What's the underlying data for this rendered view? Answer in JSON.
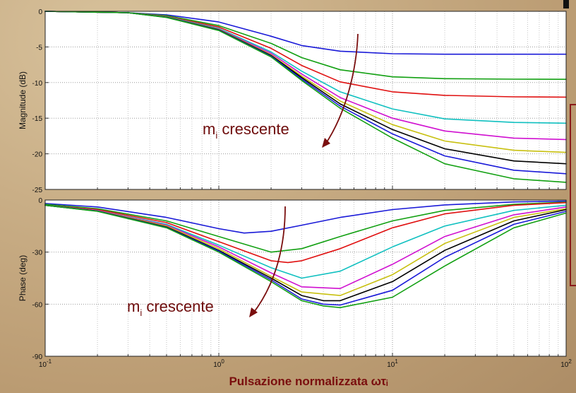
{
  "chart_data": [
    {
      "type": "line",
      "ylabel": "Magnitude (dB)",
      "x_scale": "log",
      "xlim": [
        0.1,
        100
      ],
      "ylim": [
        -25,
        0
      ],
      "yticks": [
        0,
        -5,
        -10,
        -15,
        -20,
        -25
      ],
      "grid": true,
      "annotation": {
        "main": "m",
        "sub": "i",
        "rest": " crescente"
      },
      "series": [
        {
          "color": "#1a1ad8",
          "x": [
            0.1,
            0.3,
            0.5,
            1,
            2,
            3,
            5,
            10,
            20,
            50,
            100
          ],
          "y": [
            0,
            -0.2,
            -0.5,
            -1.5,
            -3.5,
            -4.8,
            -5.6,
            -5.95,
            -6.02,
            -6.02,
            -6.02
          ]
        },
        {
          "color": "#12a012",
          "x": [
            0.1,
            0.3,
            0.5,
            1,
            2,
            3,
            5,
            10,
            20,
            50,
            100
          ],
          "y": [
            0,
            -0.2,
            -0.6,
            -2,
            -4.5,
            -6.5,
            -8.2,
            -9.2,
            -9.45,
            -9.52,
            -9.54
          ]
        },
        {
          "color": "#e01010",
          "x": [
            0.1,
            0.3,
            0.5,
            1,
            2,
            3,
            5,
            10,
            20,
            50,
            100
          ],
          "y": [
            0,
            -0.2,
            -0.7,
            -2.2,
            -5.2,
            -7.6,
            -9.9,
            -11.3,
            -11.8,
            -12.0,
            -12.04
          ]
        },
        {
          "color": "#10c0c0",
          "x": [
            0.1,
            0.3,
            0.5,
            1,
            2,
            3,
            5,
            10,
            20,
            50,
            100
          ],
          "y": [
            0,
            -0.2,
            -0.75,
            -2.4,
            -5.7,
            -8.4,
            -11.3,
            -13.7,
            -15.1,
            -15.6,
            -15.7
          ]
        },
        {
          "color": "#d010d0",
          "x": [
            0.1,
            0.3,
            0.5,
            1,
            2,
            3,
            5,
            10,
            20,
            50,
            100
          ],
          "y": [
            0,
            -0.2,
            -0.8,
            -2.5,
            -5.9,
            -8.8,
            -12.1,
            -15.0,
            -16.8,
            -17.8,
            -18.0
          ]
        },
        {
          "color": "#c8c010",
          "x": [
            0.1,
            0.3,
            0.5,
            1,
            2,
            3,
            5,
            10,
            20,
            50,
            100
          ],
          "y": [
            0,
            -0.2,
            -0.8,
            -2.55,
            -6.1,
            -9.1,
            -12.6,
            -15.9,
            -18.2,
            -19.5,
            -19.8
          ]
        },
        {
          "color": "#000000",
          "x": [
            0.1,
            0.3,
            0.5,
            1,
            2,
            3,
            5,
            10,
            20,
            50,
            100
          ],
          "y": [
            0,
            -0.2,
            -0.82,
            -2.6,
            -6.2,
            -9.3,
            -13.0,
            -16.6,
            -19.3,
            -21.0,
            -21.4
          ]
        },
        {
          "color": "#1a1ad8",
          "x": [
            0.1,
            0.3,
            0.5,
            1,
            2,
            3,
            5,
            10,
            20,
            50,
            100
          ],
          "y": [
            0,
            -0.2,
            -0.84,
            -2.65,
            -6.3,
            -9.5,
            -13.3,
            -17.2,
            -20.3,
            -22.3,
            -22.8
          ]
        },
        {
          "color": "#12a012",
          "x": [
            0.1,
            0.3,
            0.5,
            1,
            2,
            3,
            5,
            10,
            20,
            50,
            100
          ],
          "y": [
            0,
            -0.2,
            -0.86,
            -2.7,
            -6.4,
            -9.7,
            -13.6,
            -17.8,
            -21.4,
            -23.5,
            -24.0
          ]
        }
      ]
    },
    {
      "type": "line",
      "ylabel": "Phase (deg)",
      "xlabel": "Pulsazione normalizzata ωτᵢ",
      "x_scale": "log",
      "xlim": [
        0.1,
        100
      ],
      "ylim": [
        -90,
        0
      ],
      "yticks": [
        0,
        -30,
        -60,
        -90
      ],
      "xticks": [
        {
          "base": "10",
          "exp": "-1"
        },
        {
          "base": "10",
          "exp": "0"
        },
        {
          "base": "10",
          "exp": "1"
        },
        {
          "base": "10",
          "exp": "2"
        }
      ],
      "grid": true,
      "annotation": {
        "main": "m",
        "sub": "i",
        "rest": " crescente"
      },
      "series": [
        {
          "color": "#1a1ad8",
          "x": [
            0.1,
            0.2,
            0.5,
            1,
            1.4,
            2,
            3,
            5,
            10,
            20,
            50,
            100
          ],
          "y": [
            -2,
            -4,
            -10,
            -16.5,
            -19,
            -18,
            -14.5,
            -10,
            -5.5,
            -2.8,
            -1.1,
            -0.6
          ]
        },
        {
          "color": "#12a012",
          "x": [
            0.1,
            0.2,
            0.5,
            1,
            2,
            3,
            5,
            10,
            20,
            50,
            100
          ],
          "y": [
            -2.5,
            -5,
            -12,
            -21,
            -30,
            -28,
            -21,
            -12,
            -6,
            -2.5,
            -1.2
          ]
        },
        {
          "color": "#e01010",
          "x": [
            0.1,
            0.2,
            0.5,
            1,
            2,
            2.5,
            3,
            5,
            10,
            20,
            50,
            100
          ],
          "y": [
            -3,
            -5.5,
            -13,
            -24,
            -35,
            -36,
            -35,
            -28,
            -16,
            -8,
            -3,
            -1.5
          ]
        },
        {
          "color": "#10c0c0",
          "x": [
            0.1,
            0.2,
            0.5,
            1,
            2,
            3,
            5,
            10,
            20,
            50,
            100
          ],
          "y": [
            -3,
            -6,
            -14,
            -26,
            -39,
            -45,
            -41,
            -27,
            -15,
            -6,
            -3
          ]
        },
        {
          "color": "#d010d0",
          "x": [
            0.1,
            0.2,
            0.5,
            1,
            2,
            3,
            5,
            10,
            20,
            50,
            100
          ],
          "y": [
            -3,
            -6,
            -14.5,
            -27,
            -42,
            -50,
            -51,
            -37,
            -21,
            -8.5,
            -4
          ]
        },
        {
          "color": "#c8c010",
          "x": [
            0.1,
            0.2,
            0.5,
            1,
            2,
            3,
            5,
            10,
            20,
            50,
            100
          ],
          "y": [
            -3,
            -6.2,
            -15,
            -28,
            -44,
            -53,
            -55,
            -43,
            -25,
            -10,
            -5
          ]
        },
        {
          "color": "#000000",
          "x": [
            0.1,
            0.2,
            0.5,
            1,
            2,
            3,
            4,
            5,
            10,
            20,
            50,
            100
          ],
          "y": [
            -3,
            -6.3,
            -15.5,
            -29,
            -45,
            -55,
            -58,
            -58,
            -47,
            -29,
            -12,
            -5.5
          ]
        },
        {
          "color": "#1a1ad8",
          "x": [
            0.1,
            0.2,
            0.5,
            1,
            2,
            3,
            4,
            5,
            10,
            20,
            50,
            100
          ],
          "y": [
            -3,
            -6.4,
            -15.8,
            -29.5,
            -46,
            -57,
            -60,
            -60.5,
            -52,
            -33,
            -14,
            -6.5
          ]
        },
        {
          "color": "#12a012",
          "x": [
            0.1,
            0.2,
            0.5,
            1,
            2,
            3,
            4,
            5,
            10,
            20,
            50,
            100
          ],
          "y": [
            -3,
            -6.5,
            -16,
            -30,
            -47,
            -58,
            -61,
            -62,
            -56,
            -38,
            -16,
            -7.5
          ]
        }
      ]
    }
  ]
}
